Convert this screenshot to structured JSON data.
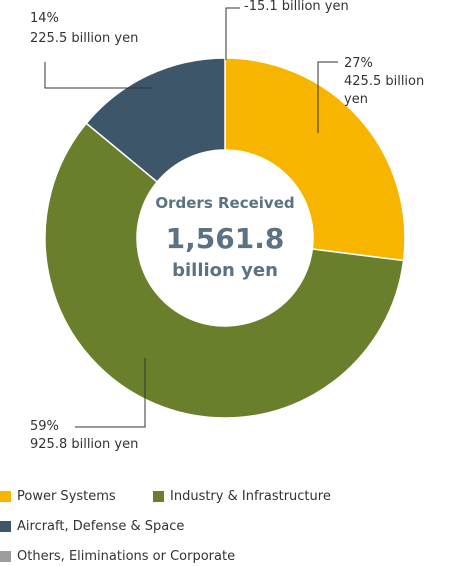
{
  "chart_data": {
    "type": "pie",
    "title": "Orders Received",
    "total": {
      "value": 1561.8,
      "label": "1,561.8"
    },
    "total_unit": "billion yen",
    "categories": [
      "Power Systems",
      "Industry & Infrastructure",
      "Aircraft, Defense & Space",
      "Others, Eliminations or Corporate"
    ],
    "values": [
      27,
      59,
      14,
      null
    ],
    "value_labels": [
      "27%",
      "59%",
      "14%",
      null
    ],
    "amounts": [
      425.5,
      925.8,
      225.5,
      -15.1
    ],
    "amount_labels": [
      "425.5 billion yen",
      "925.8 billion yen",
      "225.5 billion yen",
      "-15.1 billion yen"
    ],
    "colors": [
      "#f8b500",
      "#6a7f2c",
      "#3e5669",
      "#9d9d9d"
    ]
  }
}
